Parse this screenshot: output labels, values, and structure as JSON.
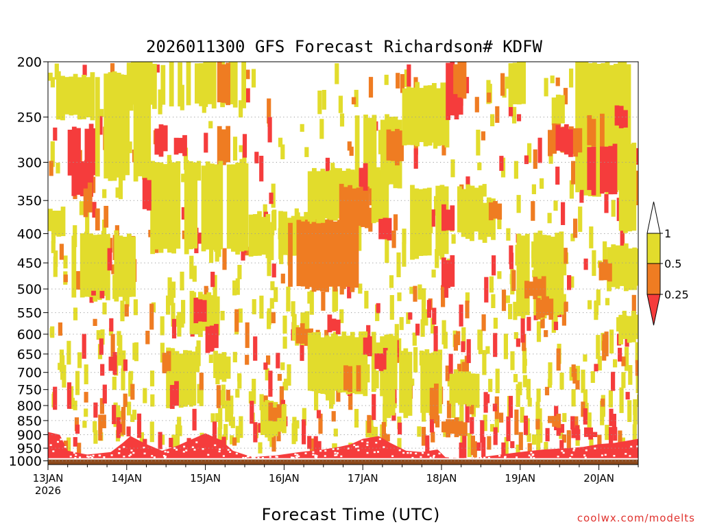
{
  "chart_data": {
    "type": "heatmap",
    "title": "2026011300 GFS Forecast Richardson# KDFW",
    "xlabel": "Forecast Time (UTC)",
    "ylabel": "",
    "watermark": "coolwx.com/modelts",
    "y_scale": "pressure (inverted, hPa)",
    "y_ticks": [
      200,
      250,
      300,
      350,
      400,
      450,
      500,
      550,
      600,
      650,
      700,
      750,
      800,
      850,
      900,
      950,
      1000
    ],
    "ylim": [
      1015,
      200
    ],
    "x_ticks": [
      {
        "day": 0,
        "label": "13JAN",
        "sub": "2026"
      },
      {
        "day": 1,
        "label": "14JAN",
        "sub": ""
      },
      {
        "day": 2,
        "label": "15JAN",
        "sub": ""
      },
      {
        "day": 3,
        "label": "16JAN",
        "sub": ""
      },
      {
        "day": 4,
        "label": "17JAN",
        "sub": ""
      },
      {
        "day": 5,
        "label": "18JAN",
        "sub": ""
      },
      {
        "day": 6,
        "label": "19JAN",
        "sub": ""
      },
      {
        "day": 7,
        "label": "20JAN",
        "sub": ""
      }
    ],
    "xlim_days": [
      0,
      7.5
    ],
    "grid": "dotted horizontal at pressure levels",
    "legend": {
      "position": "right",
      "labels": [
        "1",
        "0.5",
        "0.25"
      ],
      "colors": {
        "gt1": "#ffffff",
        "r05_1": "#e2dc2c",
        "r025_05": "#ef7c22",
        "lt025": "#f53c3c"
      }
    },
    "ground_color": "#8e4a1c",
    "colors": {
      "y": "#e2dc2c",
      "o": "#ef7c22",
      "r": "#f53c3c"
    },
    "regions": [
      {
        "c": "r",
        "d": [
          0.25,
          0.6
        ],
        "p": [
          260,
          320
        ]
      },
      {
        "c": "r",
        "d": [
          0.3,
          0.55
        ],
        "p": [
          300,
          345
        ]
      },
      {
        "c": "r",
        "d": [
          0.85,
          1.05
        ],
        "p": [
          260,
          290
        ]
      },
      {
        "c": "r",
        "d": [
          1.3,
          1.5
        ],
        "p": [
          260,
          290
        ]
      },
      {
        "c": "o",
        "d": [
          0.45,
          0.6
        ],
        "p": [
          330,
          370
        ]
      },
      {
        "c": "o",
        "d": [
          0.6,
          0.75
        ],
        "p": [
          360,
          390
        ]
      },
      {
        "c": "y",
        "d": [
          0.0,
          0.25
        ],
        "p": [
          360,
          400
        ]
      },
      {
        "c": "y",
        "d": [
          0.05,
          0.55
        ],
        "p": [
          210,
          250
        ]
      },
      {
        "c": "y",
        "d": [
          0.6,
          1.3
        ],
        "p": [
          210,
          320
        ]
      },
      {
        "c": "y",
        "d": [
          1.0,
          2.5
        ],
        "p": [
          200,
          240
        ]
      },
      {
        "c": "o",
        "d": [
          2.15,
          2.3
        ],
        "p": [
          200,
          235
        ]
      },
      {
        "c": "o",
        "d": [
          2.15,
          2.3
        ],
        "p": [
          260,
          300
        ]
      },
      {
        "c": "y",
        "d": [
          1.3,
          2.5
        ],
        "p": [
          300,
          430
        ]
      },
      {
        "c": "r",
        "d": [
          1.6,
          1.75
        ],
        "p": [
          270,
          290
        ]
      },
      {
        "c": "r",
        "d": [
          1.2,
          1.3
        ],
        "p": [
          320,
          360
        ]
      },
      {
        "c": "y",
        "d": [
          0.3,
          1.1
        ],
        "p": [
          400,
          520
        ]
      },
      {
        "c": "r",
        "d": [
          0.55,
          0.7
        ],
        "p": [
          500,
          520
        ]
      },
      {
        "c": "r",
        "d": [
          0.7,
          0.8
        ],
        "p": [
          420,
          470
        ]
      },
      {
        "c": "y",
        "d": [
          2.55,
          3.45
        ],
        "p": [
          370,
          440
        ]
      },
      {
        "c": "o",
        "d": [
          3.05,
          3.35
        ],
        "p": [
          380,
          500
        ]
      },
      {
        "c": "o",
        "d": [
          3.35,
          3.95
        ],
        "p": [
          380,
          500
        ]
      },
      {
        "c": "y",
        "d": [
          3.3,
          4.3
        ],
        "p": [
          310,
          380
        ]
      },
      {
        "c": "o",
        "d": [
          3.7,
          4.05
        ],
        "p": [
          330,
          390
        ]
      },
      {
        "c": "y",
        "d": [
          3.9,
          4.45
        ],
        "p": [
          250,
          330
        ]
      },
      {
        "c": "r",
        "d": [
          3.95,
          4.05
        ],
        "p": [
          305,
          335
        ]
      },
      {
        "c": "o",
        "d": [
          4.3,
          4.5
        ],
        "p": [
          265,
          300
        ]
      },
      {
        "c": "r",
        "d": [
          4.2,
          4.35
        ],
        "p": [
          380,
          410
        ]
      },
      {
        "c": "y",
        "d": [
          4.5,
          5.05
        ],
        "p": [
          220,
          280
        ]
      },
      {
        "c": "y",
        "d": [
          4.6,
          5.05
        ],
        "p": [
          330,
          440
        ]
      },
      {
        "c": "y",
        "d": [
          3.1,
          3.3
        ],
        "p": [
          550,
          620
        ]
      },
      {
        "c": "o",
        "d": [
          3.15,
          3.35
        ],
        "p": [
          580,
          630
        ]
      },
      {
        "c": "y",
        "d": [
          3.3,
          4.4
        ],
        "p": [
          600,
          760
        ]
      },
      {
        "c": "r",
        "d": [
          3.55,
          3.7
        ],
        "p": [
          560,
          600
        ]
      },
      {
        "c": "r",
        "d": [
          3.95,
          4.1
        ],
        "p": [
          600,
          650
        ]
      },
      {
        "c": "r",
        "d": [
          4.15,
          4.3
        ],
        "p": [
          640,
          690
        ]
      },
      {
        "c": "o",
        "d": [
          3.7,
          3.95
        ],
        "p": [
          680,
          760
        ]
      },
      {
        "c": "y",
        "d": [
          4.3,
          5.0
        ],
        "p": [
          640,
          830
        ]
      },
      {
        "c": "o",
        "d": [
          4.85,
          5.0
        ],
        "p": [
          740,
          850
        ]
      },
      {
        "c": "y",
        "d": [
          2.7,
          3.05
        ],
        "p": [
          790,
          900
        ]
      },
      {
        "c": "o",
        "d": [
          2.8,
          2.95
        ],
        "p": [
          800,
          850
        ]
      },
      {
        "c": "y",
        "d": [
          1.5,
          1.95
        ],
        "p": [
          640,
          800
        ]
      },
      {
        "c": "o",
        "d": [
          1.45,
          1.55
        ],
        "p": [
          650,
          700
        ]
      },
      {
        "c": "r",
        "d": [
          1.55,
          1.65
        ],
        "p": [
          730,
          800
        ]
      },
      {
        "c": "y",
        "d": [
          1.8,
          2.15
        ],
        "p": [
          510,
          600
        ]
      },
      {
        "c": "r",
        "d": [
          1.85,
          2.0
        ],
        "p": [
          520,
          570
        ]
      },
      {
        "c": "r",
        "d": [
          2.0,
          2.15
        ],
        "p": [
          580,
          640
        ]
      },
      {
        "c": "y",
        "d": [
          2.1,
          2.3
        ],
        "p": [
          650,
          720
        ]
      },
      {
        "c": "r",
        "d": [
          5.0,
          5.25
        ],
        "p": [
          200,
          250
        ]
      },
      {
        "c": "o",
        "d": [
          5.15,
          5.3
        ],
        "p": [
          200,
          230
        ]
      },
      {
        "c": "y",
        "d": [
          5.2,
          5.5
        ],
        "p": [
          330,
          400
        ]
      },
      {
        "c": "r",
        "d": [
          5.0,
          5.2
        ],
        "p": [
          360,
          400
        ]
      },
      {
        "c": "r",
        "d": [
          5.0,
          5.15
        ],
        "p": [
          440,
          500
        ]
      },
      {
        "c": "y",
        "d": [
          5.25,
          5.65
        ],
        "p": [
          350,
          410
        ]
      },
      {
        "c": "o",
        "d": [
          5.6,
          5.75
        ],
        "p": [
          350,
          380
        ]
      },
      {
        "c": "y",
        "d": [
          5.1,
          5.55
        ],
        "p": [
          700,
          800
        ]
      },
      {
        "c": "o",
        "d": [
          5.0,
          5.35
        ],
        "p": [
          850,
          900
        ]
      },
      {
        "c": "y",
        "d": [
          5.9,
          6.5
        ],
        "p": [
          400,
          560
        ]
      },
      {
        "c": "o",
        "d": [
          6.0,
          6.3
        ],
        "p": [
          480,
          520
        ]
      },
      {
        "c": "o",
        "d": [
          6.2,
          6.4
        ],
        "p": [
          520,
          560
        ]
      },
      {
        "c": "y",
        "d": [
          5.85,
          6.05
        ],
        "p": [
          200,
          240
        ]
      },
      {
        "c": "y",
        "d": [
          6.4,
          6.6
        ],
        "p": [
          230,
          260
        ]
      },
      {
        "c": "y",
        "d": [
          6.7,
          7.4
        ],
        "p": [
          200,
          340
        ]
      },
      {
        "c": "o",
        "d": [
          6.35,
          6.75
        ],
        "p": [
          260,
          290
        ]
      },
      {
        "c": "r",
        "d": [
          6.45,
          6.65
        ],
        "p": [
          260,
          290
        ]
      },
      {
        "c": "r",
        "d": [
          6.85,
          7.25
        ],
        "p": [
          280,
          340
        ]
      },
      {
        "c": "o",
        "d": [
          6.85,
          7.05
        ],
        "p": [
          250,
          280
        ]
      },
      {
        "c": "r",
        "d": [
          7.2,
          7.35
        ],
        "p": [
          240,
          260
        ]
      },
      {
        "c": "o",
        "d": [
          7.3,
          7.5
        ],
        "p": [
          310,
          360
        ]
      },
      {
        "c": "y",
        "d": [
          7.2,
          7.5
        ],
        "p": [
          280,
          400
        ]
      },
      {
        "c": "y",
        "d": [
          7.1,
          7.5
        ],
        "p": [
          420,
          500
        ]
      },
      {
        "c": "o",
        "d": [
          7.0,
          7.2
        ],
        "p": [
          450,
          480
        ]
      },
      {
        "c": "y",
        "d": [
          7.25,
          7.5
        ],
        "p": [
          550,
          620
        ]
      },
      {
        "c": "r",
        "d": [
          6.65,
          6.95
        ],
        "p": [
          880,
          920
        ]
      },
      {
        "c": "o",
        "d": [
          6.35,
          6.55
        ],
        "p": [
          830,
          870
        ]
      }
    ],
    "speckle": [
      {
        "c": "y",
        "d": [
          0.0,
          7.5
        ],
        "p": [
          200,
          940
        ],
        "n": 520
      },
      {
        "c": "o",
        "d": [
          0.0,
          7.5
        ],
        "p": [
          200,
          940
        ],
        "n": 180
      },
      {
        "c": "r",
        "d": [
          0.0,
          7.5
        ],
        "p": [
          200,
          940
        ],
        "n": 180
      }
    ],
    "pbl": [
      {
        "d": 0.0,
        "p": 890
      },
      {
        "d": 0.15,
        "p": 900
      },
      {
        "d": 0.25,
        "p": 960
      },
      {
        "d": 0.5,
        "p": 975
      },
      {
        "d": 0.8,
        "p": 965
      },
      {
        "d": 0.95,
        "p": 930
      },
      {
        "d": 1.05,
        "p": 905
      },
      {
        "d": 1.25,
        "p": 935
      },
      {
        "d": 1.45,
        "p": 960
      },
      {
        "d": 1.65,
        "p": 940
      },
      {
        "d": 1.8,
        "p": 920
      },
      {
        "d": 2.0,
        "p": 895
      },
      {
        "d": 2.2,
        "p": 920
      },
      {
        "d": 2.35,
        "p": 960
      },
      {
        "d": 2.6,
        "p": 985
      },
      {
        "d": 2.9,
        "p": 978
      },
      {
        "d": 3.2,
        "p": 965
      },
      {
        "d": 3.5,
        "p": 955
      },
      {
        "d": 3.7,
        "p": 945
      },
      {
        "d": 3.85,
        "p": 935
      },
      {
        "d": 4.0,
        "p": 915
      },
      {
        "d": 4.2,
        "p": 905
      },
      {
        "d": 4.35,
        "p": 930
      },
      {
        "d": 4.55,
        "p": 960
      },
      {
        "d": 4.75,
        "p": 965
      },
      {
        "d": 4.95,
        "p": 955
      },
      {
        "d": 5.05,
        "p": 985
      },
      {
        "d": 5.25,
        "p": 990
      },
      {
        "d": 5.5,
        "p": 985
      },
      {
        "d": 5.75,
        "p": 975
      },
      {
        "d": 6.0,
        "p": 965
      },
      {
        "d": 6.3,
        "p": 955
      },
      {
        "d": 6.6,
        "p": 950
      },
      {
        "d": 6.8,
        "p": 945
      },
      {
        "d": 7.0,
        "p": 935
      },
      {
        "d": 7.2,
        "p": 930
      },
      {
        "d": 7.4,
        "p": 920
      },
      {
        "d": 7.5,
        "p": 915
      }
    ]
  }
}
